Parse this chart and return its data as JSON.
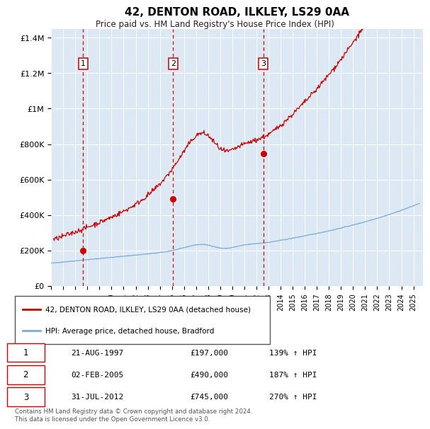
{
  "title": "42, DENTON ROAD, ILKLEY, LS29 0AA",
  "subtitle": "Price paid vs. HM Land Registry's House Price Index (HPI)",
  "footer": "Contains HM Land Registry data © Crown copyright and database right 2024.\nThis data is licensed under the Open Government Licence v3.0.",
  "legend_line1": "42, DENTON ROAD, ILKLEY, LS29 0AA (detached house)",
  "legend_line2": "HPI: Average price, detached house, Bradford",
  "sale_color": "#cc0000",
  "hpi_color": "#7aabda",
  "plot_bg": "#dce9f5",
  "ylim": [
    0,
    1450000
  ],
  "yticks": [
    0,
    200000,
    400000,
    600000,
    800000,
    1000000,
    1200000,
    1400000
  ],
  "ytick_labels": [
    "£0",
    "£200K",
    "£400K",
    "£600K",
    "£800K",
    "£1M",
    "£1.2M",
    "£1.4M"
  ],
  "xlim": [
    1995.0,
    2025.8
  ],
  "xticks": [
    1995,
    1996,
    1997,
    1998,
    1999,
    2000,
    2001,
    2002,
    2003,
    2004,
    2005,
    2006,
    2007,
    2008,
    2009,
    2010,
    2011,
    2012,
    2013,
    2014,
    2015,
    2016,
    2017,
    2018,
    2019,
    2020,
    2021,
    2022,
    2023,
    2024,
    2025
  ],
  "sales": [
    {
      "date_num": 1997.64,
      "price": 197000,
      "label": "1"
    },
    {
      "date_num": 2005.09,
      "price": 490000,
      "label": "2"
    },
    {
      "date_num": 2012.58,
      "price": 745000,
      "label": "3"
    }
  ],
  "sale_table": [
    {
      "num": "1",
      "date": "21-AUG-1997",
      "price": "£197,000",
      "hpi": "139% ↑ HPI"
    },
    {
      "num": "2",
      "date": "02-FEB-2005",
      "price": "£490,000",
      "hpi": "187% ↑ HPI"
    },
    {
      "num": "3",
      "date": "31-JUL-2012",
      "price": "£745,000",
      "hpi": "270% ↑ HPI"
    }
  ],
  "grid_color": "#ffffff",
  "vline_sale_color": "#cc0000",
  "vline_nosale_color": "#aaaaaa"
}
